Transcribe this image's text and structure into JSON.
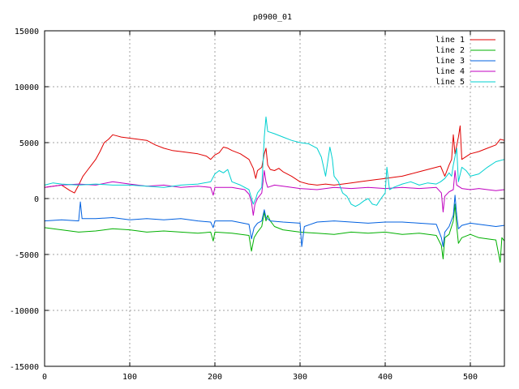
{
  "chart_data": {
    "type": "line",
    "title": "p0900_01",
    "xlabel": "",
    "ylabel": "",
    "xlim": [
      0,
      540
    ],
    "ylim": [
      -15000,
      15000
    ],
    "x_ticks": [
      0,
      100,
      200,
      300,
      400,
      500
    ],
    "y_ticks": [
      -15000,
      -10000,
      -5000,
      0,
      5000,
      10000,
      15000
    ],
    "x_tick_labels": [
      "0",
      "100",
      "200",
      "300",
      "400",
      "500"
    ],
    "y_tick_labels": [
      "-15000",
      "-10000",
      "-5000",
      "0",
      "5000",
      "10000",
      "15000"
    ],
    "grid": true,
    "legend_position": "top-right",
    "series": [
      {
        "name": "line 1",
        "color": "#e00000",
        "points": [
          [
            0,
            1000
          ],
          [
            10,
            1100
          ],
          [
            20,
            1200
          ],
          [
            30,
            700
          ],
          [
            35,
            500
          ],
          [
            40,
            1200
          ],
          [
            45,
            2000
          ],
          [
            50,
            2500
          ],
          [
            55,
            3000
          ],
          [
            60,
            3500
          ],
          [
            65,
            4200
          ],
          [
            70,
            5000
          ],
          [
            75,
            5300
          ],
          [
            80,
            5700
          ],
          [
            85,
            5600
          ],
          [
            90,
            5500
          ],
          [
            100,
            5400
          ],
          [
            110,
            5300
          ],
          [
            120,
            5200
          ],
          [
            130,
            4800
          ],
          [
            140,
            4500
          ],
          [
            150,
            4300
          ],
          [
            160,
            4200
          ],
          [
            170,
            4100
          ],
          [
            180,
            4000
          ],
          [
            190,
            3800
          ],
          [
            195,
            3500
          ],
          [
            200,
            3900
          ],
          [
            205,
            4100
          ],
          [
            210,
            4600
          ],
          [
            215,
            4500
          ],
          [
            220,
            4300
          ],
          [
            230,
            4000
          ],
          [
            240,
            3500
          ],
          [
            245,
            2700
          ],
          [
            248,
            1800
          ],
          [
            250,
            2500
          ],
          [
            255,
            2800
          ],
          [
            258,
            4000
          ],
          [
            260,
            4500
          ],
          [
            262,
            3000
          ],
          [
            265,
            2600
          ],
          [
            270,
            2500
          ],
          [
            275,
            2700
          ],
          [
            280,
            2400
          ],
          [
            290,
            2000
          ],
          [
            300,
            1500
          ],
          [
            310,
            1300
          ],
          [
            320,
            1200
          ],
          [
            330,
            1300
          ],
          [
            340,
            1200
          ],
          [
            350,
            1300
          ],
          [
            360,
            1400
          ],
          [
            370,
            1500
          ],
          [
            380,
            1600
          ],
          [
            390,
            1700
          ],
          [
            400,
            1800
          ],
          [
            410,
            1900
          ],
          [
            420,
            2000
          ],
          [
            430,
            2200
          ],
          [
            440,
            2400
          ],
          [
            450,
            2600
          ],
          [
            460,
            2800
          ],
          [
            465,
            2900
          ],
          [
            470,
            2000
          ],
          [
            475,
            3000
          ],
          [
            478,
            3500
          ],
          [
            480,
            5700
          ],
          [
            482,
            4000
          ],
          [
            486,
            5500
          ],
          [
            488,
            6500
          ],
          [
            490,
            3500
          ],
          [
            500,
            4000
          ],
          [
            510,
            4200
          ],
          [
            520,
            4500
          ],
          [
            530,
            4800
          ],
          [
            535,
            5300
          ],
          [
            540,
            5200
          ]
        ]
      },
      {
        "name": "line 2",
        "color": "#00b000",
        "points": [
          [
            0,
            -2600
          ],
          [
            20,
            -2800
          ],
          [
            40,
            -3000
          ],
          [
            60,
            -2900
          ],
          [
            80,
            -2700
          ],
          [
            100,
            -2800
          ],
          [
            120,
            -3000
          ],
          [
            140,
            -2900
          ],
          [
            160,
            -3000
          ],
          [
            180,
            -3100
          ],
          [
            195,
            -3000
          ],
          [
            198,
            -3800
          ],
          [
            200,
            -3000
          ],
          [
            220,
            -3100
          ],
          [
            240,
            -3300
          ],
          [
            243,
            -4700
          ],
          [
            246,
            -3500
          ],
          [
            250,
            -3000
          ],
          [
            255,
            -2500
          ],
          [
            258,
            -1200
          ],
          [
            260,
            -2000
          ],
          [
            262,
            -1500
          ],
          [
            265,
            -2000
          ],
          [
            270,
            -2500
          ],
          [
            280,
            -2800
          ],
          [
            300,
            -3000
          ],
          [
            320,
            -3100
          ],
          [
            340,
            -3200
          ],
          [
            360,
            -3000
          ],
          [
            380,
            -3100
          ],
          [
            400,
            -3000
          ],
          [
            420,
            -3200
          ],
          [
            440,
            -3100
          ],
          [
            460,
            -3300
          ],
          [
            466,
            -4200
          ],
          [
            468,
            -5400
          ],
          [
            470,
            -3500
          ],
          [
            475,
            -3200
          ],
          [
            480,
            -2000
          ],
          [
            482,
            -500
          ],
          [
            484,
            -2500
          ],
          [
            486,
            -4000
          ],
          [
            490,
            -3500
          ],
          [
            500,
            -3200
          ],
          [
            510,
            -3500
          ],
          [
            520,
            -3600
          ],
          [
            530,
            -3700
          ],
          [
            535,
            -5700
          ],
          [
            537,
            -3500
          ],
          [
            540,
            -3800
          ]
        ]
      },
      {
        "name": "line 3",
        "color": "#0060e0",
        "points": [
          [
            0,
            -2000
          ],
          [
            20,
            -1900
          ],
          [
            40,
            -2000
          ],
          [
            42,
            -300
          ],
          [
            44,
            -1800
          ],
          [
            60,
            -1800
          ],
          [
            80,
            -1700
          ],
          [
            100,
            -1900
          ],
          [
            120,
            -1800
          ],
          [
            140,
            -1900
          ],
          [
            160,
            -1800
          ],
          [
            180,
            -2000
          ],
          [
            195,
            -2100
          ],
          [
            198,
            -2600
          ],
          [
            200,
            -2000
          ],
          [
            220,
            -2000
          ],
          [
            240,
            -2300
          ],
          [
            243,
            -3600
          ],
          [
            246,
            -2600
          ],
          [
            250,
            -2200
          ],
          [
            255,
            -2000
          ],
          [
            258,
            -1000
          ],
          [
            260,
            -1700
          ],
          [
            265,
            -2000
          ],
          [
            280,
            -2100
          ],
          [
            300,
            -2200
          ],
          [
            302,
            -4300
          ],
          [
            305,
            -2500
          ],
          [
            320,
            -2100
          ],
          [
            340,
            -2000
          ],
          [
            360,
            -2100
          ],
          [
            380,
            -2200
          ],
          [
            400,
            -2100
          ],
          [
            420,
            -2100
          ],
          [
            440,
            -2200
          ],
          [
            460,
            -2300
          ],
          [
            466,
            -3500
          ],
          [
            468,
            -4300
          ],
          [
            470,
            -3000
          ],
          [
            475,
            -2500
          ],
          [
            480,
            -1500
          ],
          [
            482,
            300
          ],
          [
            484,
            -1500
          ],
          [
            486,
            -2700
          ],
          [
            490,
            -2400
          ],
          [
            500,
            -2200
          ],
          [
            510,
            -2300
          ],
          [
            520,
            -2400
          ],
          [
            530,
            -2500
          ],
          [
            540,
            -2400
          ]
        ]
      },
      {
        "name": "line 4",
        "color": "#c000c0",
        "points": [
          [
            0,
            1000
          ],
          [
            20,
            1200
          ],
          [
            40,
            1300
          ],
          [
            60,
            1200
          ],
          [
            80,
            1500
          ],
          [
            100,
            1300
          ],
          [
            120,
            1100
          ],
          [
            140,
            1200
          ],
          [
            160,
            1000
          ],
          [
            180,
            1100
          ],
          [
            195,
            1000
          ],
          [
            198,
            300
          ],
          [
            200,
            1000
          ],
          [
            220,
            1000
          ],
          [
            235,
            800
          ],
          [
            240,
            400
          ],
          [
            243,
            -300
          ],
          [
            245,
            -1500
          ],
          [
            247,
            -500
          ],
          [
            250,
            0
          ],
          [
            255,
            500
          ],
          [
            258,
            2500
          ],
          [
            260,
            1500
          ],
          [
            262,
            1000
          ],
          [
            270,
            1200
          ],
          [
            280,
            1100
          ],
          [
            300,
            900
          ],
          [
            320,
            800
          ],
          [
            340,
            1000
          ],
          [
            360,
            900
          ],
          [
            380,
            1000
          ],
          [
            400,
            900
          ],
          [
            420,
            1000
          ],
          [
            440,
            900
          ],
          [
            460,
            1000
          ],
          [
            466,
            500
          ],
          [
            468,
            -1200
          ],
          [
            470,
            200
          ],
          [
            475,
            600
          ],
          [
            480,
            800
          ],
          [
            482,
            2500
          ],
          [
            484,
            1200
          ],
          [
            490,
            900
          ],
          [
            500,
            800
          ],
          [
            510,
            900
          ],
          [
            520,
            800
          ],
          [
            530,
            700
          ],
          [
            540,
            800
          ]
        ]
      },
      {
        "name": "line 5",
        "color": "#00d0d0",
        "points": [
          [
            0,
            1200
          ],
          [
            10,
            1400
          ],
          [
            20,
            1300
          ],
          [
            40,
            1200
          ],
          [
            60,
            1300
          ],
          [
            80,
            1200
          ],
          [
            100,
            1200
          ],
          [
            120,
            1100
          ],
          [
            140,
            1000
          ],
          [
            160,
            1200
          ],
          [
            180,
            1300
          ],
          [
            195,
            1500
          ],
          [
            200,
            2200
          ],
          [
            205,
            2500
          ],
          [
            210,
            2300
          ],
          [
            215,
            2600
          ],
          [
            220,
            1500
          ],
          [
            230,
            1200
          ],
          [
            240,
            800
          ],
          [
            245,
            -500
          ],
          [
            248,
            0
          ],
          [
            250,
            500
          ],
          [
            255,
            1000
          ],
          [
            258,
            5500
          ],
          [
            260,
            7300
          ],
          [
            262,
            6000
          ],
          [
            270,
            5800
          ],
          [
            280,
            5500
          ],
          [
            290,
            5200
          ],
          [
            300,
            5000
          ],
          [
            310,
            4900
          ],
          [
            320,
            4500
          ],
          [
            325,
            3700
          ],
          [
            330,
            2000
          ],
          [
            335,
            4600
          ],
          [
            338,
            3500
          ],
          [
            340,
            2000
          ],
          [
            345,
            1500
          ],
          [
            350,
            500
          ],
          [
            355,
            200
          ],
          [
            360,
            -500
          ],
          [
            365,
            -700
          ],
          [
            370,
            -500
          ],
          [
            375,
            -200
          ],
          [
            380,
            0
          ],
          [
            385,
            -500
          ],
          [
            390,
            -600
          ],
          [
            395,
            0
          ],
          [
            400,
            500
          ],
          [
            402,
            2800
          ],
          [
            405,
            800
          ],
          [
            410,
            1000
          ],
          [
            420,
            1300
          ],
          [
            430,
            1500
          ],
          [
            440,
            1200
          ],
          [
            450,
            1400
          ],
          [
            460,
            1300
          ],
          [
            465,
            1500
          ],
          [
            470,
            1800
          ],
          [
            475,
            2300
          ],
          [
            478,
            2000
          ],
          [
            480,
            3000
          ],
          [
            484,
            4500
          ],
          [
            486,
            1500
          ],
          [
            490,
            2800
          ],
          [
            495,
            2500
          ],
          [
            500,
            2000
          ],
          [
            510,
            2200
          ],
          [
            520,
            2800
          ],
          [
            530,
            3300
          ],
          [
            540,
            3500
          ]
        ]
      }
    ]
  }
}
